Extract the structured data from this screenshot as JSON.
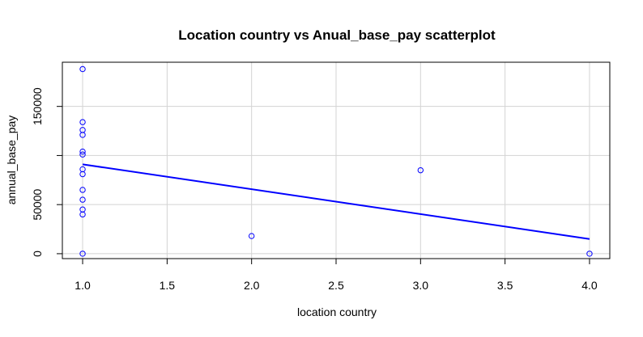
{
  "chart_data": {
    "type": "scatter",
    "title": "Location country vs Anual_base_pay scatterplot",
    "xlabel": "location country",
    "ylabel": "annual_base_pay",
    "xlim": [
      0.88,
      4.12
    ],
    "ylim": [
      -5000,
      195000
    ],
    "x_ticks": [
      1.0,
      1.5,
      2.0,
      2.5,
      3.0,
      3.5,
      4.0
    ],
    "x_tick_labels": [
      "1.0",
      "1.5",
      "2.0",
      "2.5",
      "3.0",
      "3.5",
      "4.0"
    ],
    "y_ticks": [
      0,
      50000,
      100000,
      150000
    ],
    "y_tick_labels": [
      "0",
      "50000",
      "",
      "150000"
    ],
    "grid": true,
    "point_color": "#0000ff",
    "line_color": "#0000ff",
    "points": [
      {
        "x": 1,
        "y": 188000
      },
      {
        "x": 1,
        "y": 134000
      },
      {
        "x": 1,
        "y": 126000
      },
      {
        "x": 1,
        "y": 121000
      },
      {
        "x": 1,
        "y": 104000
      },
      {
        "x": 1,
        "y": 101000
      },
      {
        "x": 1,
        "y": 86000
      },
      {
        "x": 1,
        "y": 81000
      },
      {
        "x": 1,
        "y": 65000
      },
      {
        "x": 1,
        "y": 55000
      },
      {
        "x": 1,
        "y": 45000
      },
      {
        "x": 1,
        "y": 40000
      },
      {
        "x": 1,
        "y": 0
      },
      {
        "x": 2,
        "y": 18000
      },
      {
        "x": 3,
        "y": 85000
      },
      {
        "x": 4,
        "y": 0
      }
    ],
    "regression_line": {
      "x": [
        1,
        4
      ],
      "y": [
        91000,
        15000
      ]
    }
  }
}
